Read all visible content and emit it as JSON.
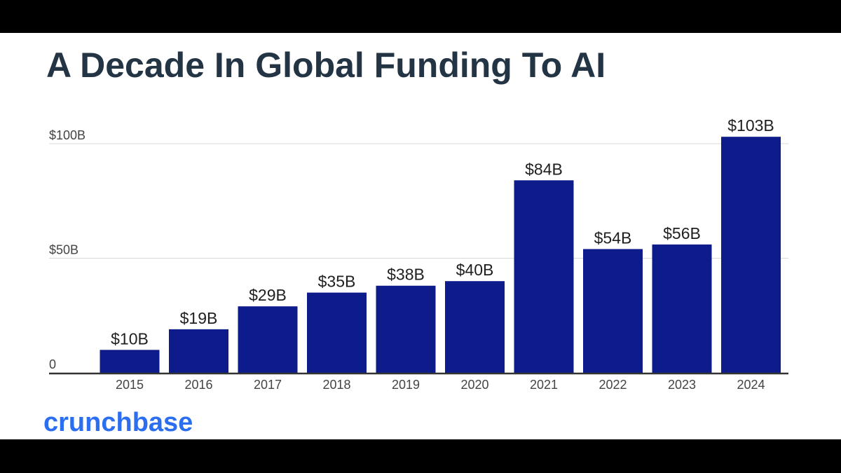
{
  "title": "A Decade In Global Funding To AI",
  "brand": "crunchbase",
  "colors": {
    "bar": "#0d1c8a",
    "title": "#233444",
    "brand": "#2b6ff0",
    "grid": "#d9d9d9",
    "axis": "#333333",
    "text": "#1f1f1f",
    "tick": "#444444"
  },
  "chart_data": {
    "type": "bar",
    "title": "A Decade In Global Funding To AI",
    "xlabel": "",
    "ylabel": "",
    "categories": [
      "2015",
      "2016",
      "2017",
      "2018",
      "2019",
      "2020",
      "2021",
      "2022",
      "2023",
      "2024"
    ],
    "values": [
      10,
      19,
      29,
      35,
      38,
      40,
      84,
      54,
      56,
      103
    ],
    "value_labels": [
      "$10B",
      "$19B",
      "$29B",
      "$35B",
      "$38B",
      "$40B",
      "$84B",
      "$54B",
      "$56B",
      "$103B"
    ],
    "y_ticks": [
      {
        "value": 0,
        "label": "0"
      },
      {
        "value": 50,
        "label": "$50B"
      },
      {
        "value": 100,
        "label": "$100B"
      }
    ],
    "ylim": [
      0,
      100
    ],
    "grid": true,
    "legend": "none"
  }
}
